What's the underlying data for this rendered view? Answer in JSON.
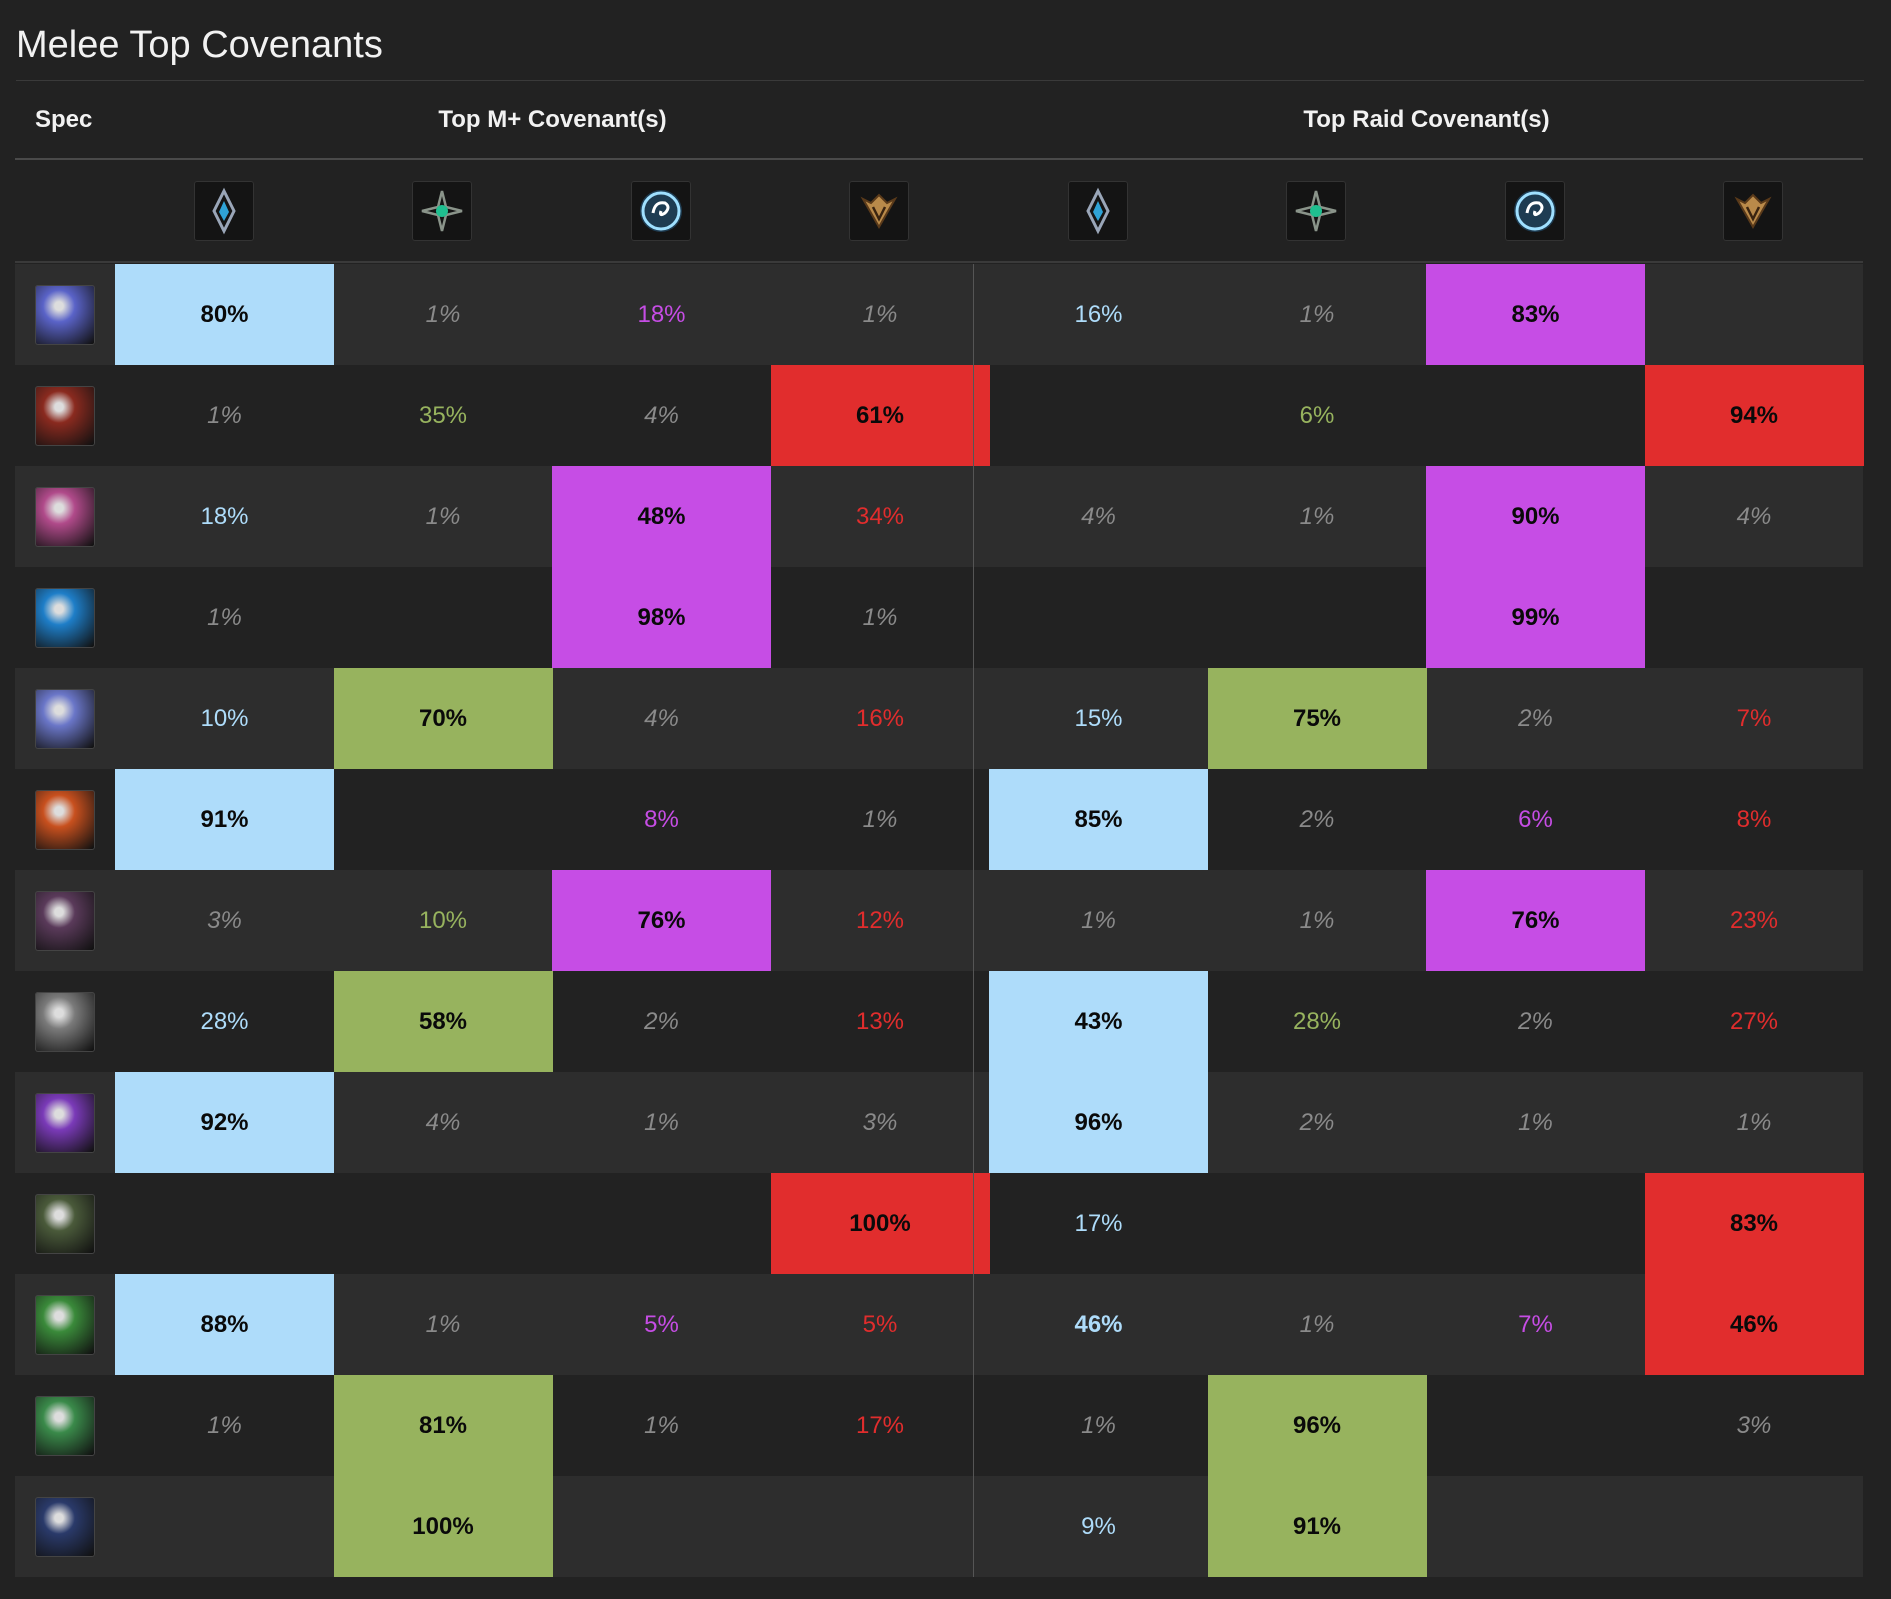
{
  "title": "Melee Top Covenants",
  "header": {
    "spec": "Spec",
    "mplus": "Top M+ Covenant(s)",
    "raid": "Top Raid Covenant(s)"
  },
  "covenants": [
    {
      "name": "kyrian-icon",
      "color": "#2fa3d6"
    },
    {
      "name": "night-fae-icon",
      "color": "#1fbf8f"
    },
    {
      "name": "venthyr-icon",
      "color": "#9fe0ff"
    },
    {
      "name": "necrolord-icon",
      "color": "#b98a4a"
    }
  ],
  "colors": {
    "kyrian": "#aedcfa",
    "night_fae": "#97b35e",
    "venthyr": "#c64de5",
    "necrolord": "#e12d2d",
    "minor": "#8a8a8a"
  },
  "rows": [
    {
      "spec_icon": "arms-warrior-icon",
      "spec_color": "#5a63c8",
      "mplus": [
        "80%",
        "1%",
        "18%",
        "1%"
      ],
      "raid": [
        "16%",
        "1%",
        "83%",
        ""
      ]
    },
    {
      "spec_icon": "fury-warrior-icon",
      "spec_color": "#8a2a1f",
      "mplus": [
        "1%",
        "35%",
        "4%",
        "61%"
      ],
      "raid": [
        "",
        "6%",
        "",
        "94%"
      ]
    },
    {
      "spec_icon": "retribution-paladin-icon",
      "spec_color": "#b04a8a",
      "mplus": [
        "18%",
        "1%",
        "48%",
        "34%"
      ],
      "raid": [
        "4%",
        "1%",
        "90%",
        "4%"
      ]
    },
    {
      "spec_icon": "enhancement-shaman-icon",
      "spec_color": "#1e7ec8",
      "mplus": [
        "1%",
        "",
        "98%",
        "1%"
      ],
      "raid": [
        "",
        "",
        "99%",
        ""
      ]
    },
    {
      "spec_icon": "frost-death-knight-icon",
      "spec_color": "#6a76c8",
      "mplus": [
        "10%",
        "70%",
        "4%",
        "16%"
      ],
      "raid": [
        "15%",
        "75%",
        "2%",
        "7%"
      ]
    },
    {
      "spec_icon": "unholy-death-knight-icon",
      "spec_color": "#c8501e",
      "mplus": [
        "91%",
        "",
        "8%",
        "1%"
      ],
      "raid": [
        "85%",
        "2%",
        "6%",
        "8%"
      ]
    },
    {
      "spec_icon": "havoc-demon-hunter-icon",
      "spec_color": "#5a3a5a",
      "mplus": [
        "3%",
        "10%",
        "76%",
        "12%"
      ],
      "raid": [
        "1%",
        "1%",
        "76%",
        "23%"
      ]
    },
    {
      "spec_icon": "windwalker-monk-icon",
      "spec_color": "#7a7a7a",
      "mplus": [
        "28%",
        "58%",
        "2%",
        "13%"
      ],
      "raid": [
        "43%",
        "28%",
        "2%",
        "27%"
      ]
    },
    {
      "spec_icon": "assassination-rogue-icon",
      "spec_color": "#7a3ab8",
      "mplus": [
        "92%",
        "4%",
        "1%",
        "3%"
      ],
      "raid": [
        "96%",
        "2%",
        "1%",
        "1%"
      ]
    },
    {
      "spec_icon": "outlaw-rogue-icon",
      "spec_color": "#4a5a3a",
      "mplus": [
        "",
        "",
        "",
        "100%"
      ],
      "raid": [
        "17%",
        "",
        "",
        "83%"
      ]
    },
    {
      "spec_icon": "subtlety-rogue-icon",
      "spec_color": "#3a8a3a",
      "mplus": [
        "88%",
        "1%",
        "5%",
        "5%"
      ],
      "raid": [
        "46%",
        "1%",
        "7%",
        "46%"
      ]
    },
    {
      "spec_icon": "feral-druid-icon",
      "spec_color": "#3a8a4a",
      "mplus": [
        "1%",
        "81%",
        "1%",
        "17%"
      ],
      "raid": [
        "1%",
        "96%",
        "",
        "3%"
      ]
    },
    {
      "spec_icon": "survival-hunter-icon",
      "spec_color": "#2a3a6a",
      "mplus": [
        "",
        "100%",
        "",
        ""
      ],
      "raid": [
        "9%",
        "91%",
        "",
        ""
      ]
    }
  ]
}
